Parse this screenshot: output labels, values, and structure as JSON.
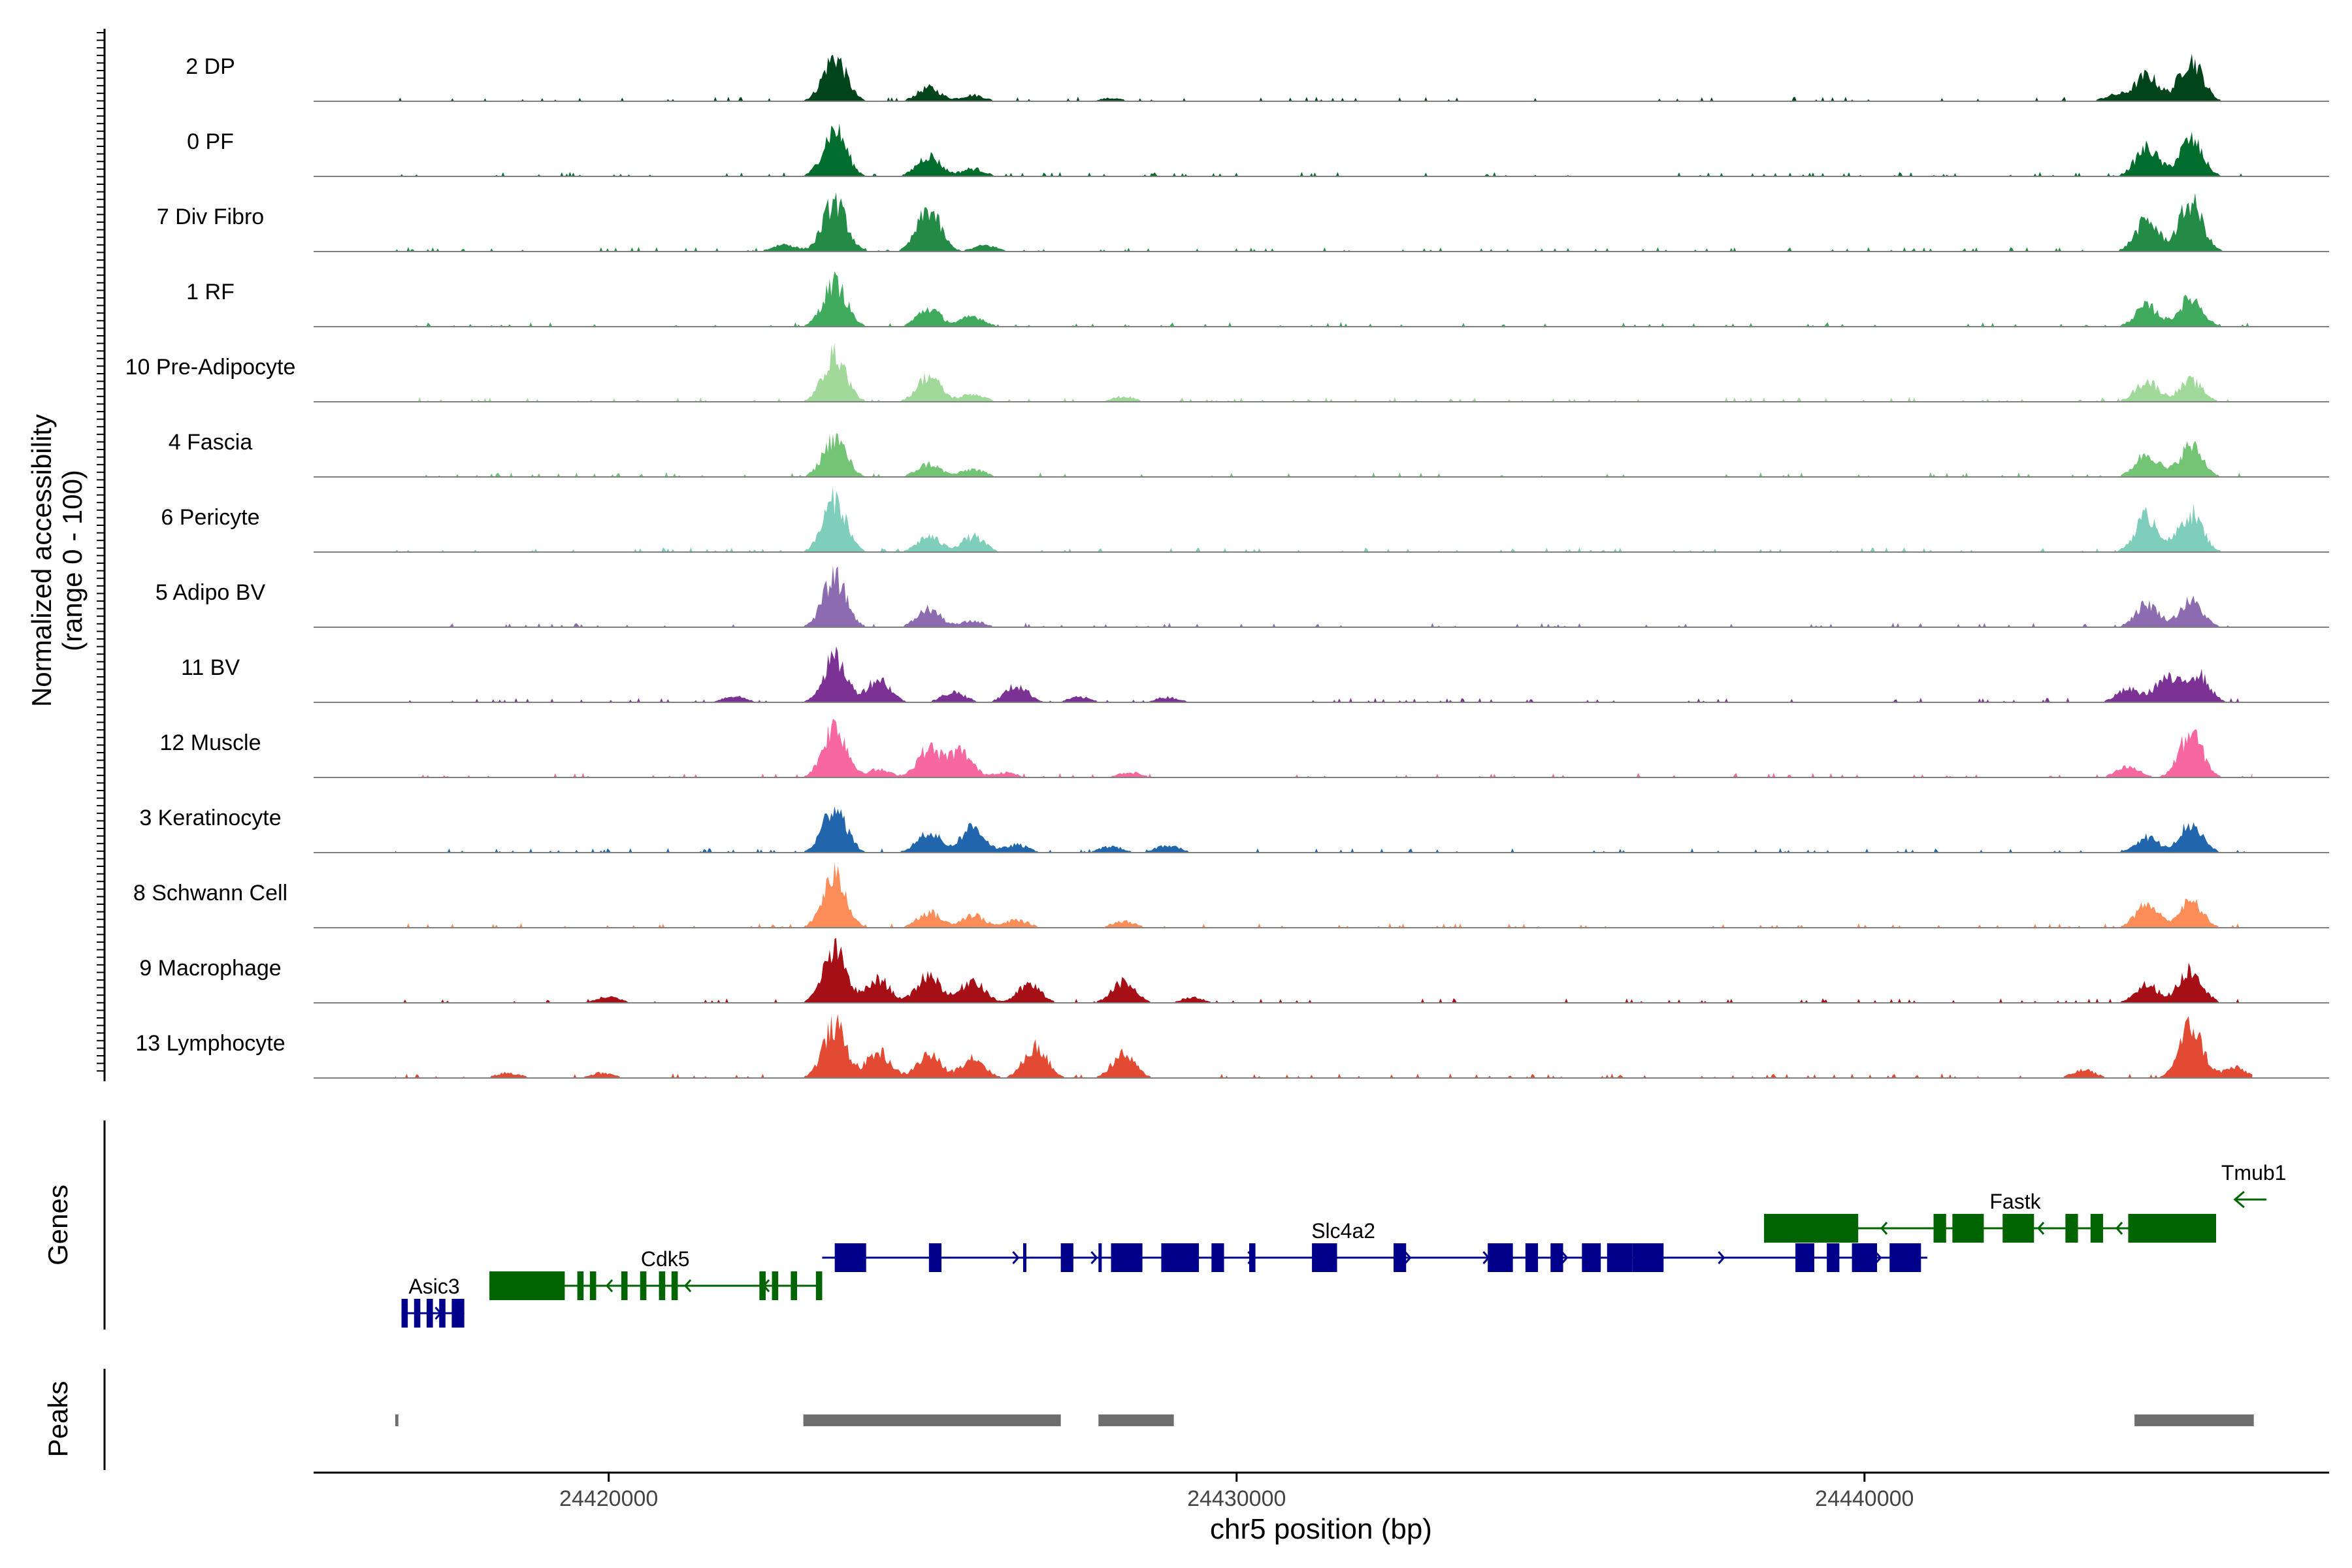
{
  "chart_data": {
    "type": "area",
    "title": "",
    "xlabel": "chr5 position (bp)",
    "ylabel": "Normalized accessibility",
    "ylabel_sub": "(range 0 - 100)",
    "ylim": [
      0,
      100
    ],
    "xlim": [
      24415300,
      24447400
    ],
    "x_ticks": [
      24420000,
      24430000,
      24440000
    ],
    "x_tick_labels": [
      "24420000",
      "24430000",
      "24440000"
    ],
    "panel_labels": {
      "genes": "Genes",
      "peaks": "Peaks"
    },
    "tracks": [
      {
        "name": "2 DP",
        "color": "#00441b",
        "peaks": [
          [
            24423600,
            0.85
          ],
          [
            24425100,
            0.26
          ],
          [
            24425800,
            0.12
          ],
          [
            24428000,
            0.06
          ],
          [
            24444000,
            0.12
          ],
          [
            24444500,
            0.5
          ],
          [
            24445200,
            0.8
          ]
        ]
      },
      {
        "name": "0 PF",
        "color": "#006d2c",
        "peaks": [
          [
            24423600,
            0.9
          ],
          [
            24425100,
            0.4
          ],
          [
            24425800,
            0.15
          ],
          [
            24444500,
            0.55
          ],
          [
            24445200,
            0.7
          ]
        ]
      },
      {
        "name": "7 Div Fibro",
        "color": "#238b45",
        "peaks": [
          [
            24422800,
            0.14
          ],
          [
            24423600,
            0.95
          ],
          [
            24425100,
            0.8
          ],
          [
            24426000,
            0.12
          ],
          [
            24444500,
            0.6
          ],
          [
            24445200,
            0.95
          ]
        ]
      },
      {
        "name": "1 RF",
        "color": "#41ab5d",
        "peaks": [
          [
            24423600,
            0.85
          ],
          [
            24425100,
            0.35
          ],
          [
            24425800,
            0.2
          ],
          [
            24444500,
            0.4
          ],
          [
            24445200,
            0.55
          ]
        ]
      },
      {
        "name": "10 Pre-Adipocyte",
        "color": "#a1d99b",
        "peaks": [
          [
            24423600,
            0.9
          ],
          [
            24425100,
            0.5
          ],
          [
            24425800,
            0.15
          ],
          [
            24428200,
            0.1
          ],
          [
            24444500,
            0.4
          ],
          [
            24445200,
            0.4
          ]
        ]
      },
      {
        "name": "4 Fascia",
        "color": "#74c476",
        "peaks": [
          [
            24423600,
            0.75
          ],
          [
            24425100,
            0.25
          ],
          [
            24425800,
            0.15
          ],
          [
            24444500,
            0.45
          ],
          [
            24445200,
            0.6
          ]
        ]
      },
      {
        "name": "6 Pericyte",
        "color": "#7fcdbb",
        "peaks": [
          [
            24423600,
            1.0
          ],
          [
            24425100,
            0.3
          ],
          [
            24425800,
            0.3
          ],
          [
            24444500,
            0.7
          ],
          [
            24445200,
            0.75
          ]
        ]
      },
      {
        "name": "5 Adipo BV",
        "color": "#8c6bb1",
        "peaks": [
          [
            24423600,
            0.95
          ],
          [
            24425100,
            0.35
          ],
          [
            24425800,
            0.12
          ],
          [
            24444500,
            0.45
          ],
          [
            24445200,
            0.5
          ]
        ]
      },
      {
        "name": "11 BV",
        "color": "#7b3294",
        "peaks": [
          [
            24422000,
            0.12
          ],
          [
            24423600,
            0.85
          ],
          [
            24424300,
            0.45
          ],
          [
            24425500,
            0.2
          ],
          [
            24426500,
            0.32
          ],
          [
            24427500,
            0.1
          ],
          [
            24428900,
            0.1
          ],
          [
            24444200,
            0.25
          ],
          [
            24444800,
            0.45
          ],
          [
            24445300,
            0.55
          ]
        ]
      },
      {
        "name": "12 Muscle",
        "color": "#f768a1",
        "peaks": [
          [
            24423600,
            1.0
          ],
          [
            24424300,
            0.15
          ],
          [
            24425100,
            0.55
          ],
          [
            24425600,
            0.5
          ],
          [
            24426300,
            0.1
          ],
          [
            24428300,
            0.1
          ],
          [
            24444200,
            0.2
          ],
          [
            24445200,
            0.85
          ]
        ]
      },
      {
        "name": "3 Keratinocyte",
        "color": "#2166ac",
        "peaks": [
          [
            24423600,
            0.9
          ],
          [
            24425100,
            0.4
          ],
          [
            24425800,
            0.5
          ],
          [
            24426500,
            0.15
          ],
          [
            24428000,
            0.12
          ],
          [
            24428900,
            0.15
          ],
          [
            24444500,
            0.3
          ],
          [
            24445200,
            0.55
          ]
        ]
      },
      {
        "name": "8 Schwann Cell",
        "color": "#fc8d59",
        "peaks": [
          [
            24423600,
            1.0
          ],
          [
            24425100,
            0.3
          ],
          [
            24425800,
            0.25
          ],
          [
            24426500,
            0.15
          ],
          [
            24428200,
            0.12
          ],
          [
            24444500,
            0.45
          ],
          [
            24445200,
            0.5
          ]
        ]
      },
      {
        "name": "9 Macrophage",
        "color": "#a50f15",
        "peaks": [
          [
            24423600,
            1.0
          ],
          [
            24424300,
            0.45
          ],
          [
            24425100,
            0.55
          ],
          [
            24425800,
            0.45
          ],
          [
            24426700,
            0.35
          ],
          [
            24428200,
            0.4
          ],
          [
            24429300,
            0.1
          ],
          [
            24420000,
            0.12
          ],
          [
            24444500,
            0.35
          ],
          [
            24445200,
            0.65
          ]
        ]
      },
      {
        "name": "13 Lymphocyte",
        "color": "#e34a33",
        "peaks": [
          [
            24418400,
            0.1
          ],
          [
            24419900,
            0.1
          ],
          [
            24423600,
            1.0
          ],
          [
            24424300,
            0.5
          ],
          [
            24425100,
            0.45
          ],
          [
            24425800,
            0.4
          ],
          [
            24426800,
            0.6
          ],
          [
            24428200,
            0.45
          ],
          [
            24443500,
            0.15
          ],
          [
            24445200,
            1.0
          ],
          [
            24445900,
            0.2
          ]
        ]
      }
    ],
    "genes": [
      {
        "name": "Asic3",
        "strand": "+",
        "color": "#00008b",
        "start": 24416700,
        "end": 24417700,
        "exons": [
          [
            24416700,
            24416800
          ],
          [
            24416900,
            24417000
          ],
          [
            24417100,
            24417200
          ],
          [
            24417300,
            24417400
          ],
          [
            24417500,
            24417700
          ]
        ]
      },
      {
        "name": "Cdk5",
        "strand": "-",
        "color": "#006400",
        "start": 24418100,
        "end": 24423400,
        "exons": [
          [
            24418100,
            24419300
          ],
          [
            24419500,
            24419600
          ],
          [
            24419700,
            24419800
          ],
          [
            24420200,
            24420300
          ],
          [
            24420500,
            24420600
          ],
          [
            24420800,
            24420900
          ],
          [
            24421000,
            24421100
          ],
          [
            24422400,
            24422500
          ],
          [
            24422600,
            24422700
          ],
          [
            24422900,
            24423000
          ],
          [
            24423300,
            24423400
          ]
        ]
      },
      {
        "name": "Slc4a2",
        "strand": "+",
        "color": "#00008b",
        "start": 24423400,
        "end": 24441000,
        "exons": [
          [
            24423600,
            24424100
          ],
          [
            24425100,
            24425300
          ],
          [
            24426600,
            24426650
          ],
          [
            24427200,
            24427400
          ],
          [
            24427800,
            24427850
          ],
          [
            24428000,
            24428500
          ],
          [
            24428800,
            24429400
          ],
          [
            24429600,
            24429800
          ],
          [
            24430200,
            24430300
          ],
          [
            24431200,
            24431600
          ],
          [
            24432500,
            24432700
          ],
          [
            24434000,
            24434400
          ],
          [
            24434600,
            24434800
          ],
          [
            24435000,
            24435200
          ],
          [
            24435500,
            24435800
          ],
          [
            24435900,
            24436300
          ],
          [
            24436300,
            24436800
          ],
          [
            24438900,
            24439200
          ],
          [
            24439400,
            24439600
          ],
          [
            24439800,
            24440200
          ],
          [
            24440400,
            24440900
          ]
        ]
      },
      {
        "name": "Fastk",
        "strand": "-",
        "color": "#006400",
        "start": 24438400,
        "end": 24445200,
        "exons": [
          [
            24438400,
            24439900
          ],
          [
            24441100,
            24441300
          ],
          [
            24441400,
            24441900
          ],
          [
            24442200,
            24442700
          ],
          [
            24443200,
            24443400
          ],
          [
            24443600,
            24443800
          ],
          [
            24444200,
            24445600
          ]
        ]
      },
      {
        "name": "Tmub1",
        "strand": "-",
        "color": "#006400",
        "start": 24445900,
        "end": 24446400,
        "exons": []
      }
    ],
    "peaks": [
      [
        24416600,
        24416650
      ],
      [
        24423100,
        24427200
      ],
      [
        24427800,
        24429000
      ],
      [
        24444300,
        24446200
      ]
    ]
  }
}
